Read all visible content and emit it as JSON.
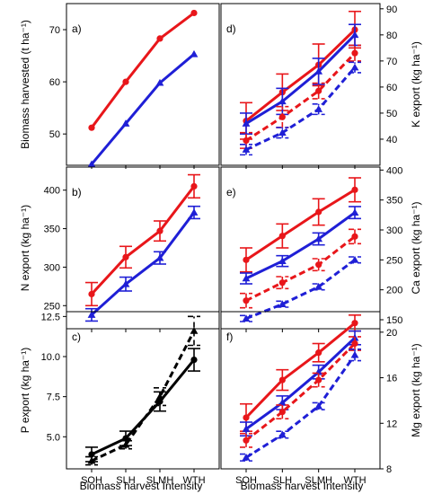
{
  "colors": {
    "red": "#e8161a",
    "blue": "#1f1fd6",
    "black": "#000000"
  },
  "xlabel": "Biomass harvest Intensity",
  "categories": [
    "SOH",
    "SLH",
    "SLMH",
    "WTH"
  ],
  "chart_data": [
    {
      "id": "a",
      "panel_label": "a)",
      "type": "line",
      "ylabel": "Biomass harvested (t ha⁻¹)",
      "yaxis_side": "left",
      "ylim": [
        44,
        75
      ],
      "yticks": [
        50,
        60,
        70
      ],
      "show_xticklabels": false,
      "series": [
        {
          "color": "red",
          "marker": "circle",
          "dashed": false,
          "values": [
            51.2,
            60,
            68.3,
            73.2
          ],
          "err": [
            0,
            0,
            0,
            0
          ]
        },
        {
          "color": "blue",
          "marker": "triangle",
          "dashed": false,
          "values": [
            44.2,
            52,
            59.8,
            65.3
          ],
          "err": [
            0,
            0,
            0,
            0
          ]
        }
      ]
    },
    {
      "id": "d",
      "panel_label": "d)",
      "type": "line",
      "ylabel": "K export (kg ha⁻¹)",
      "yaxis_side": "right",
      "ylim": [
        30,
        92
      ],
      "yticks": [
        40,
        50,
        60,
        70,
        80,
        90
      ],
      "show_xticklabels": false,
      "series": [
        {
          "color": "red",
          "marker": "circle",
          "dashed": false,
          "values": [
            47,
            58,
            68.5,
            82
          ],
          "err": [
            7,
            7,
            8,
            7
          ]
        },
        {
          "color": "blue",
          "marker": "triangle",
          "dashed": false,
          "values": [
            46,
            54.5,
            66,
            80
          ],
          "err": [
            4,
            5,
            5,
            4
          ]
        },
        {
          "color": "red",
          "marker": "circle",
          "dashed": true,
          "values": [
            39.5,
            48.5,
            58.5,
            73
          ],
          "err": [
            3,
            4,
            3,
            3
          ]
        },
        {
          "color": "blue",
          "marker": "triangle",
          "dashed": true,
          "values": [
            36,
            42.5,
            51.5,
            67.5
          ],
          "err": [
            2,
            2,
            2,
            2
          ]
        }
      ]
    },
    {
      "id": "b",
      "panel_label": "b)",
      "type": "line",
      "ylabel": "N export (kg ha⁻¹)",
      "yaxis_side": "left",
      "ylim": [
        220,
        430
      ],
      "yticks": [
        250,
        300,
        350,
        400
      ],
      "show_xticklabels": false,
      "series": [
        {
          "color": "red",
          "marker": "circle",
          "dashed": false,
          "values": [
            265,
            313,
            347,
            405
          ],
          "err": [
            15,
            14,
            13,
            15
          ]
        },
        {
          "color": "blue",
          "marker": "triangle",
          "dashed": false,
          "values": [
            238,
            278,
            312,
            371
          ],
          "err": [
            8,
            9,
            8,
            8
          ]
        }
      ]
    },
    {
      "id": "e",
      "panel_label": "e)",
      "type": "line",
      "ylabel": "Ca export (kg ha⁻¹)",
      "yaxis_side": "right",
      "ylim": [
        135,
        405
      ],
      "yticks": [
        150,
        200,
        250,
        300,
        350,
        400
      ],
      "show_xticklabels": false,
      "series": [
        {
          "color": "red",
          "marker": "circle",
          "dashed": false,
          "values": [
            250,
            290,
            330,
            367
          ],
          "err": [
            20,
            20,
            22,
            20
          ]
        },
        {
          "color": "blue",
          "marker": "triangle",
          "dashed": false,
          "values": [
            219,
            248,
            285,
            329
          ],
          "err": [
            9,
            9,
            10,
            10
          ]
        },
        {
          "color": "red",
          "marker": "circle",
          "dashed": true,
          "values": [
            182,
            212,
            242,
            289
          ],
          "err": [
            12,
            10,
            10,
            12
          ]
        },
        {
          "color": "blue",
          "marker": "triangle",
          "dashed": true,
          "values": [
            152,
            176,
            205,
            250
          ],
          "err": [
            5,
            5,
            5,
            5
          ]
        }
      ]
    },
    {
      "id": "c",
      "panel_label": "c)",
      "type": "line",
      "ylabel": "P export (kg ha⁻¹)",
      "yaxis_side": "left",
      "ylim": [
        3.0,
        12.8
      ],
      "yticks": [
        5.0,
        7.5,
        10.0,
        12.5
      ],
      "show_xticklabels": true,
      "series": [
        {
          "color": "black",
          "marker": "circle",
          "dashed": false,
          "values": [
            3.9,
            4.9,
            7.2,
            9.8
          ],
          "err": [
            0.45,
            0.45,
            0.6,
            0.7
          ]
        },
        {
          "color": "black",
          "marker": "triangle",
          "dashed": true,
          "values": [
            3.5,
            4.5,
            7.5,
            11.6
          ],
          "err": [
            0.25,
            0.25,
            0.55,
            0.9
          ]
        }
      ]
    },
    {
      "id": "f",
      "panel_label": "f)",
      "type": "line",
      "ylabel": "Mg export (kg ha⁻¹)",
      "yaxis_side": "right",
      "ylim": [
        8.0,
        21.8
      ],
      "yticks": [
        8,
        12,
        16,
        20
      ],
      "show_xticklabels": true,
      "series": [
        {
          "color": "red",
          "marker": "circle",
          "dashed": false,
          "values": [
            12.5,
            15.8,
            18.2,
            20.8
          ],
          "err": [
            1.2,
            0.9,
            0.8,
            0.7
          ]
        },
        {
          "color": "blue",
          "marker": "triangle",
          "dashed": false,
          "values": [
            11.5,
            13.8,
            16.5,
            19.5
          ],
          "err": [
            0.6,
            0.6,
            0.6,
            0.6
          ]
        },
        {
          "color": "red",
          "marker": "circle",
          "dashed": true,
          "values": [
            10.5,
            13,
            15.8,
            19
          ],
          "err": [
            0.6,
            0.6,
            0.6,
            0.6
          ]
        },
        {
          "color": "blue",
          "marker": "triangle",
          "dashed": true,
          "values": [
            9,
            11,
            13.5,
            18
          ],
          "err": [
            0.3,
            0.3,
            0.3,
            0.5
          ]
        }
      ]
    }
  ]
}
